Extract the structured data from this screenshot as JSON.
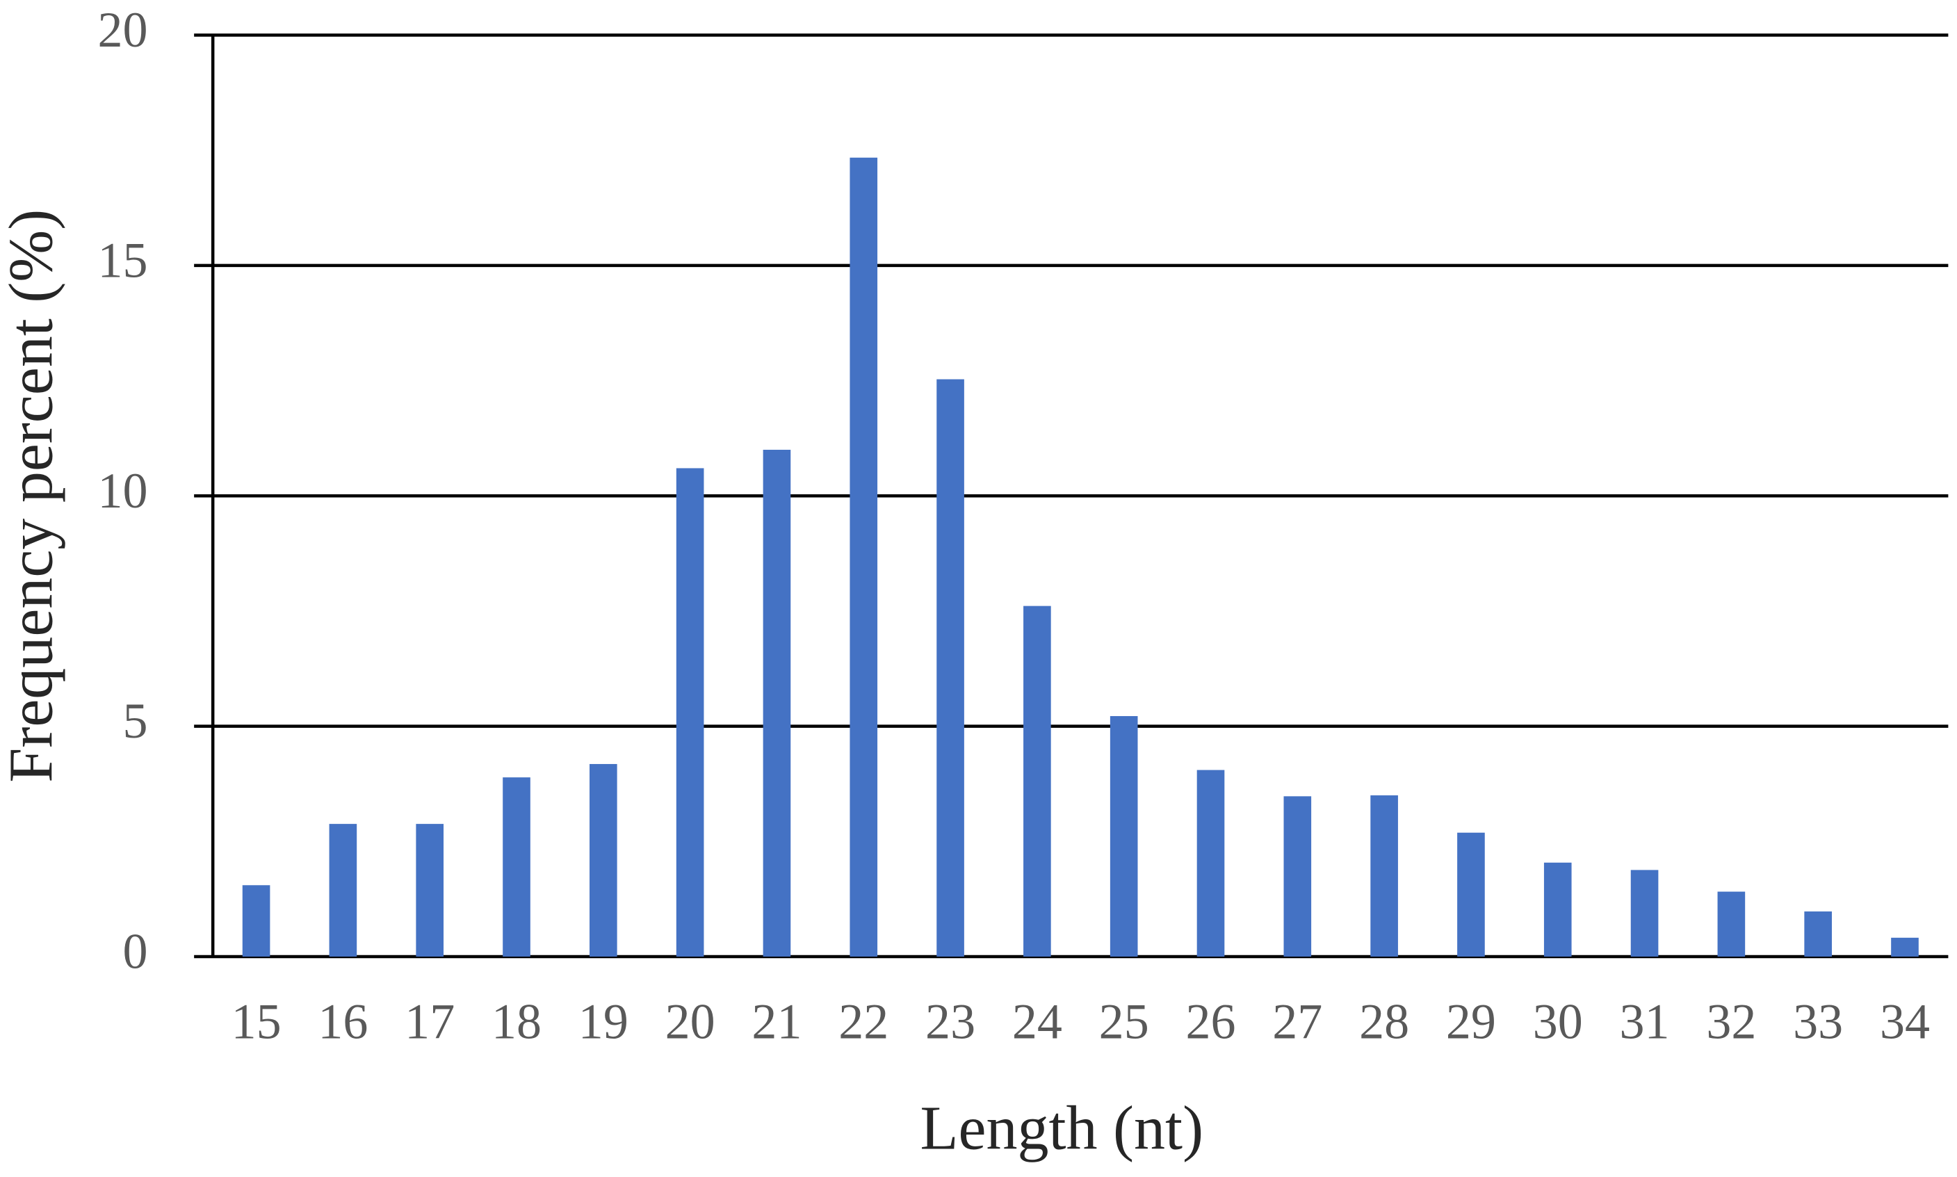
{
  "chart_data": {
    "type": "bar",
    "x_label": "Length (nt)",
    "y_label": "Frequency percent (%)",
    "categories": [
      "15",
      "16",
      "17",
      "18",
      "19",
      "20",
      "21",
      "22",
      "23",
      "24",
      "25",
      "26",
      "27",
      "28",
      "29",
      "30",
      "31",
      "32",
      "33",
      "34"
    ],
    "values": [
      1.55,
      2.88,
      2.88,
      3.89,
      4.18,
      10.6,
      11.0,
      17.34,
      12.53,
      7.61,
      5.22,
      4.05,
      3.48,
      3.5,
      2.69,
      2.04,
      1.88,
      1.41,
      0.98,
      0.41
    ],
    "color": "#4472c4",
    "ylim": [
      0,
      20
    ],
    "yticks": [
      0,
      5,
      10,
      15,
      20
    ],
    "grid": true
  }
}
